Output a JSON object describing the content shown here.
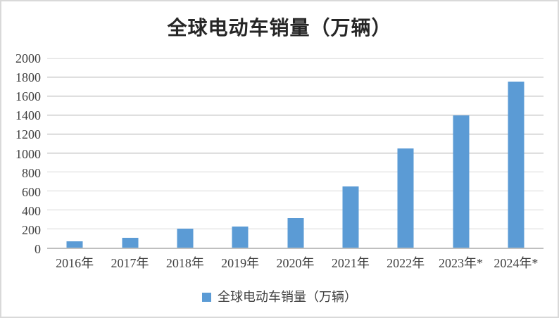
{
  "chart_data": {
    "type": "bar",
    "title": "全球电动车销量（万辆）",
    "categories": [
      "2016年",
      "2017年",
      "2018年",
      "2019年",
      "2020年",
      "2021年",
      "2022年",
      "2023年*",
      "2024年*"
    ],
    "series": [
      {
        "name": "全球电动车销量（万辆）",
        "values": [
          65,
          105,
          200,
          220,
          310,
          650,
          1050,
          1400,
          1755
        ]
      }
    ],
    "xlabel": "",
    "ylabel": "",
    "ylim": [
      0,
      2000
    ],
    "ytick_step": 200,
    "ytick_labels": [
      "0",
      "200",
      "400",
      "600",
      "800",
      "1000",
      "1200",
      "1400",
      "1600",
      "1800",
      "2000"
    ],
    "grid": true,
    "legend_position": "bottom",
    "colors": {
      "bar": "#5b9bd5",
      "gridline": "#d9d9d9",
      "axis_line": "#bfbfbf",
      "tick_text": "#404040",
      "title_text": "#262626",
      "frame_border": "#d9d9d9"
    }
  }
}
